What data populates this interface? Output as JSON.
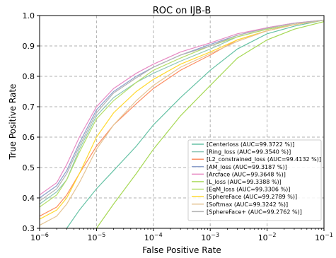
{
  "chart_data": {
    "type": "line",
    "title": "ROC on IJB-B",
    "xlabel": "False Positive Rate",
    "ylabel": "True Positive Rate",
    "xscale": "log",
    "xlim": [
      1e-06,
      0.1
    ],
    "ylim": [
      0.3,
      1.0
    ],
    "x_ticks": [
      1e-06,
      1e-05,
      0.0001,
      0.001,
      0.01,
      0.1
    ],
    "x_tick_labels": [
      {
        "base": "10",
        "exp": "−6"
      },
      {
        "base": "10",
        "exp": "−5"
      },
      {
        "base": "10",
        "exp": "−4"
      },
      {
        "base": "10",
        "exp": "−3"
      },
      {
        "base": "10",
        "exp": "−2"
      },
      {
        "base": "10",
        "exp": "−1"
      }
    ],
    "y_ticks": [
      0.3,
      0.4,
      0.5,
      0.6,
      0.7,
      0.8,
      0.9,
      1.0
    ],
    "y_tick_labels": [
      "0.3",
      "0.4",
      "0.5",
      "0.6",
      "0.7",
      "0.8",
      "0.9",
      "1.0"
    ],
    "grid": true,
    "legend_position": "lower-right",
    "series": [
      {
        "name": "[Centerloss (AUC=99.3722 %)]",
        "color": "#66c2a5",
        "x": [
          3e-06,
          5e-06,
          1e-05,
          2e-05,
          5e-05,
          0.0001,
          0.0003,
          0.001,
          0.003,
          0.01,
          0.03,
          0.1
        ],
        "y": [
          0.3,
          0.36,
          0.43,
          0.49,
          0.57,
          0.64,
          0.73,
          0.82,
          0.89,
          0.94,
          0.965,
          0.985
        ]
      },
      {
        "name": "[Ring_loss (AUC=99.3540 %)]",
        "color": "#8fc7b8",
        "x": [
          1e-06,
          2e-06,
          3e-06,
          5e-06,
          1e-05,
          2e-05,
          5e-05,
          0.0001,
          0.0003,
          0.001,
          0.003,
          0.01,
          0.03,
          0.1
        ],
        "y": [
          0.38,
          0.42,
          0.46,
          0.56,
          0.67,
          0.73,
          0.78,
          0.81,
          0.85,
          0.89,
          0.93,
          0.955,
          0.97,
          0.985
        ]
      },
      {
        "name": "[L2_constrained_loss (AUC=99.4132 %)]",
        "color": "#fc8d62",
        "x": [
          1e-06,
          2e-06,
          3e-06,
          5e-06,
          1e-05,
          2e-05,
          5e-05,
          0.0001,
          0.0003,
          0.001,
          0.003,
          0.01,
          0.03,
          0.1
        ],
        "y": [
          0.34,
          0.37,
          0.41,
          0.48,
          0.57,
          0.64,
          0.71,
          0.76,
          0.82,
          0.87,
          0.92,
          0.95,
          0.97,
          0.985
        ]
      },
      {
        "name": "[AM_loss (AUC=99.3187 %)]",
        "color": "#8da0cb",
        "x": [
          1e-06,
          2e-06,
          3e-06,
          5e-06,
          1e-05,
          2e-05,
          5e-05,
          0.0001,
          0.0003,
          0.001,
          0.003,
          0.01,
          0.03,
          0.1
        ],
        "y": [
          0.4,
          0.44,
          0.49,
          0.58,
          0.69,
          0.75,
          0.8,
          0.83,
          0.87,
          0.905,
          0.935,
          0.96,
          0.975,
          0.985
        ]
      },
      {
        "name": "[Arcface (AUC=99.3648 %)]",
        "color": "#e78ac3",
        "x": [
          1e-06,
          2e-06,
          3e-06,
          5e-06,
          1e-05,
          2e-05,
          5e-05,
          0.0001,
          0.0003,
          0.001,
          0.003,
          0.01,
          0.03,
          0.1
        ],
        "y": [
          0.41,
          0.45,
          0.51,
          0.6,
          0.7,
          0.76,
          0.81,
          0.84,
          0.88,
          0.91,
          0.94,
          0.96,
          0.975,
          0.985
        ]
      },
      {
        "name": "[L_loss (AUC=99.3388 %)]",
        "color": "#a6d854",
        "x": [
          1e-05,
          2e-05,
          5e-05,
          0.0001,
          0.0003,
          0.001,
          0.003,
          0.01,
          0.03,
          0.1
        ],
        "y": [
          0.3,
          0.38,
          0.48,
          0.56,
          0.67,
          0.77,
          0.86,
          0.92,
          0.955,
          0.98
        ]
      },
      {
        "name": "[EqM_loss (AUC=99.3306 %)]",
        "color": "#b3de69",
        "x": [
          1e-06,
          2e-06,
          3e-06,
          5e-06,
          1e-05,
          2e-05,
          5e-05,
          0.0001,
          0.0003,
          0.001,
          0.003,
          0.01,
          0.03,
          0.1
        ],
        "y": [
          0.37,
          0.41,
          0.46,
          0.55,
          0.66,
          0.72,
          0.78,
          0.82,
          0.86,
          0.9,
          0.93,
          0.955,
          0.97,
          0.985
        ]
      },
      {
        "name": "[SphereFace (AUC=99.2789 %)]",
        "color": "#ffd92f",
        "x": [
          1e-06,
          2e-06,
          3e-06,
          5e-06,
          1e-05,
          2e-05,
          5e-05,
          0.0001,
          0.0003,
          0.001,
          0.003,
          0.01,
          0.03,
          0.1
        ],
        "y": [
          0.33,
          0.36,
          0.4,
          0.48,
          0.6,
          0.68,
          0.75,
          0.79,
          0.84,
          0.88,
          0.92,
          0.95,
          0.97,
          0.985
        ]
      },
      {
        "name": "[Softmax (AUC=99.3242 %)]",
        "color": "#e5c494",
        "x": [
          1e-06,
          2e-06,
          3e-06,
          5e-06,
          1e-05,
          2e-05,
          5e-05,
          0.0001,
          0.0003,
          0.001,
          0.003,
          0.01,
          0.03,
          0.1
        ],
        "y": [
          0.31,
          0.34,
          0.38,
          0.45,
          0.56,
          0.64,
          0.72,
          0.77,
          0.83,
          0.875,
          0.915,
          0.95,
          0.97,
          0.985
        ]
      },
      {
        "name": "[SphereFace+ (AUC=99.2762 %)]",
        "color": "#b3b3b3",
        "x": [
          1e-06,
          2e-06,
          3e-06,
          5e-06,
          1e-05,
          2e-05,
          5e-05,
          0.0001,
          0.0003,
          0.001,
          0.003,
          0.01,
          0.03,
          0.1
        ],
        "y": [
          0.39,
          0.43,
          0.48,
          0.57,
          0.68,
          0.745,
          0.795,
          0.83,
          0.87,
          0.9,
          0.935,
          0.958,
          0.974,
          0.985
        ]
      }
    ]
  }
}
